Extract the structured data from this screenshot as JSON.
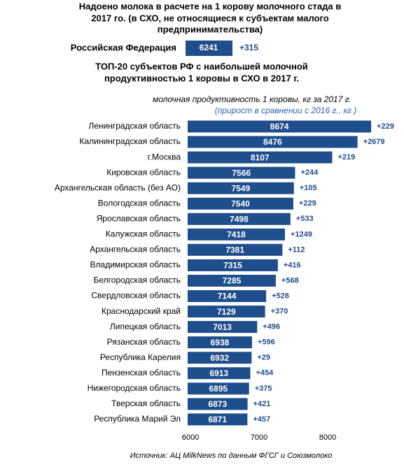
{
  "chart_data": {
    "type": "bar",
    "orientation": "horizontal",
    "title": [
      "Надоено молока в расчете на 1 корову молочного стада в",
      "2017 го. (в СХО, не относящиеся к субъектам малого",
      "предпринимательства)"
    ],
    "federation": {
      "name": "Российская Федерация",
      "value": 6241,
      "change": "+315"
    },
    "subtitle": [
      "ТОП-20 субъектов РФ с наибольшей молочной",
      "продуктивностью 1 коровы в СХО в 2017 г."
    ],
    "value_note": "молочная продуктивность 1 коровы, кг за 2017 г.",
    "change_note": "(прирост в сравнении с 2016 г., кг )",
    "categories": [
      "Ленинградская область",
      "Калининградская область",
      "г.Москва",
      "Кировская область",
      "Архангельская область (без АО)",
      "Вологодская область",
      "Ярославская область",
      "Калужская область",
      "Архангельская область",
      "Владимирская область",
      "Белгородская область",
      "Свердловская область",
      "Краснодарский край",
      "Липецкая область",
      "Рязанская область",
      "Республика Карелия",
      "Пензенская область",
      "Нижегородская область",
      "Тверская область",
      "Республика Марий Эл"
    ],
    "values": [
      8674,
      8476,
      8107,
      7566,
      7549,
      7540,
      7498,
      7418,
      7381,
      7315,
      7285,
      7144,
      7129,
      7013,
      6938,
      6932,
      6913,
      6895,
      6873,
      6871
    ],
    "changes": [
      "+229",
      "+2679",
      "+219",
      "+244",
      "+105",
      "+229",
      "+533",
      "+1249",
      "+112",
      "+416",
      "+568",
      "+528",
      "+370",
      "+496",
      "+596",
      "+29",
      "+454",
      "+375",
      "+421",
      "+457"
    ],
    "color": "#1f4e8c",
    "xlim": [
      6000,
      9000
    ],
    "xticks": [
      6000,
      7000,
      8000
    ],
    "source": "Источник: АЦ MilkNews по данным ФГСГ и Союзмолоко"
  }
}
